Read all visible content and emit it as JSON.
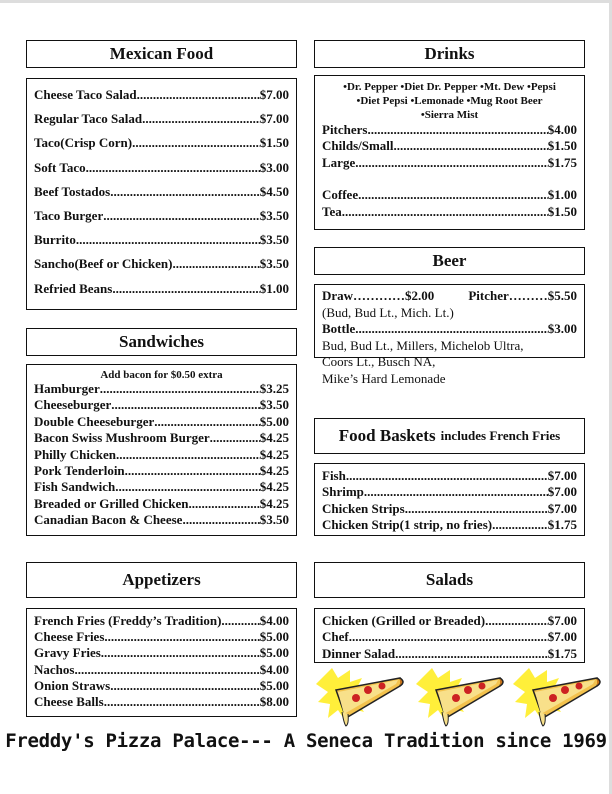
{
  "mexican": {
    "title": "Mexican Food",
    "items": [
      {
        "name": "Cheese Taco Salad",
        "price": "$7.00"
      },
      {
        "name": "Regular Taco Salad",
        "price": "$7.00"
      },
      {
        "name": "Taco(Crisp Corn)",
        "price": "$1.50"
      },
      {
        "name": "Soft Taco",
        "price": "$3.00"
      },
      {
        "name": "Beef Tostados",
        "price": "$4.50"
      },
      {
        "name": "Taco Burger",
        "price": "$3.50"
      },
      {
        "name": "Burrito",
        "price": "$3.50"
      },
      {
        "name": "Sancho(Beef or Chicken)",
        "price": "$3.50"
      },
      {
        "name": "Refried Beans",
        "price": "$1.00"
      }
    ]
  },
  "sandwiches": {
    "title": "Sandwiches",
    "note": "Add bacon for $0.50 extra",
    "items": [
      {
        "name": "Hamburger",
        "price": "$3.25"
      },
      {
        "name": "Cheeseburger",
        "price": "$3.50"
      },
      {
        "name": "Double Cheeseburger",
        "price": "$5.00"
      },
      {
        "name": "Bacon Swiss Mushroom Burger",
        "price": "$4.25"
      },
      {
        "name": "Philly Chicken",
        "price": "$4.25"
      },
      {
        "name": "Pork Tenderloin",
        "price": "$4.25"
      },
      {
        "name": "Fish Sandwich",
        "price": "$4.25"
      },
      {
        "name": "Breaded or Grilled Chicken",
        "price": "$4.25"
      },
      {
        "name": "Canadian Bacon & Cheese",
        "price": "$3.50"
      }
    ]
  },
  "appetizers": {
    "title": "Appetizers",
    "items": [
      {
        "name": "French Fries (Freddy’s Tradition)",
        "price": "$4.00"
      },
      {
        "name": "Cheese Fries",
        "price": "$5.00"
      },
      {
        "name": "Gravy Fries",
        "price": "$5.00"
      },
      {
        "name": "Nachos",
        "price": "$4.00"
      },
      {
        "name": "Onion Straws",
        "price": "$5.00"
      },
      {
        "name": "Cheese Balls",
        "price": "$8.00"
      }
    ]
  },
  "drinks": {
    "title": "Drinks",
    "sodas_line1": "•Dr. Pepper  •Diet Dr. Pepper •Mt. Dew •Pepsi",
    "sodas_line2": "•Diet Pepsi •Lemonade •Mug Root Beer",
    "sodas_line3": "•Sierra Mist",
    "items": [
      {
        "name": "Pitchers ",
        "price": "$4.00"
      },
      {
        "name": "Childs/Small ",
        "price": "$1.50"
      },
      {
        "name": "Large",
        "price": "$1.75"
      }
    ],
    "hot": [
      {
        "name": "Coffee",
        "price": "$1.00"
      },
      {
        "name": "Tea ",
        "price": "$1.50"
      }
    ]
  },
  "beer": {
    "title": "Beer",
    "draw": "Draw…………$2.00",
    "pitcher": "Pitcher………$5.50",
    "draw_brands": "(Bud, Bud Lt., Mich. Lt.)",
    "bottle": {
      "name": "Bottle",
      "price": "$3.00"
    },
    "bottle_brands_1": "Bud, Bud Lt., Millers, Michelob Ultra,",
    "bottle_brands_2": "Coors Lt., Busch NA,",
    "bottle_brands_3": "Mike’s Hard Lemonade"
  },
  "baskets": {
    "title": "Food Baskets",
    "subtitle": "includes French Fries",
    "items": [
      {
        "name": "Fish ",
        "price": "$7.00"
      },
      {
        "name": "Shrimp ",
        "price": "$7.00"
      },
      {
        "name": "Chicken Strips",
        "price": "$7.00"
      },
      {
        "name": "Chicken Strip(1 strip, no fries)",
        "price": "$1.75"
      }
    ]
  },
  "salads": {
    "title": "Salads",
    "items": [
      {
        "name": "Chicken (Grilled or Breaded)",
        "price": "$7.00"
      },
      {
        "name": "Chef ",
        "price": "$7.00"
      },
      {
        "name": "Dinner Salad",
        "price": "$1.75"
      }
    ]
  },
  "footer": "Freddy's Pizza Palace--- A Seneca Tradition since 1969"
}
